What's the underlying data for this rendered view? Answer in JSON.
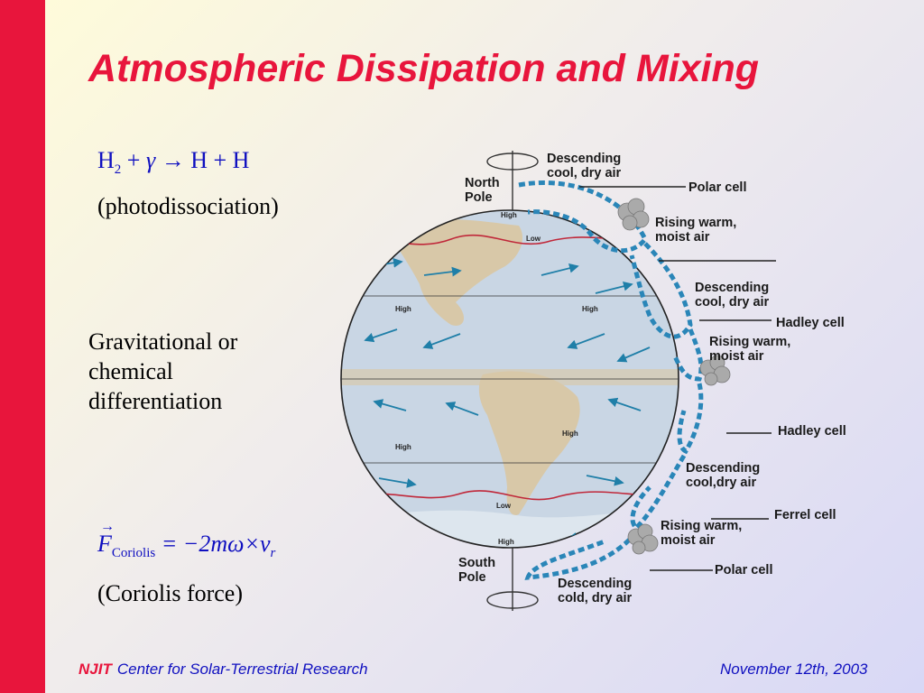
{
  "slide": {
    "title": "Atmospheric Dissipation and Mixing",
    "eq1": {
      "lhs_H": "H",
      "lhs_sub": "2",
      "plus1": "+",
      "gamma": "γ",
      "arrow": "→",
      "rhs": "H + H"
    },
    "eq1_caption": "(photodissociation)",
    "middle_text": [
      "Gravitational or",
      "chemical",
      "differentiation"
    ],
    "eq2": {
      "F": "F",
      "sub": "Coriolis",
      "rhs": "= −2mω×v",
      "r": "r"
    },
    "eq2_caption": "(Coriolis force)"
  },
  "diagram": {
    "pole_labels": {
      "north": [
        "North",
        "Pole"
      ],
      "south": [
        "South",
        "Pole"
      ]
    },
    "map_labels": [
      "High",
      "Low",
      "High",
      "High",
      "High",
      "High",
      "Low",
      "High"
    ],
    "cell_labels": [
      {
        "lines": [
          "Descending",
          "cool, dry air"
        ]
      },
      {
        "lines": [
          "Polar cell"
        ]
      },
      {
        "lines": [
          "Rising warm,",
          "moist air"
        ]
      },
      {
        "lines": [
          "Descending",
          "cool, dry air"
        ]
      },
      {
        "lines": [
          "Hadley cell"
        ]
      },
      {
        "lines": [
          "Rising warm,",
          "moist air"
        ]
      },
      {
        "lines": [
          "Hadley cell"
        ]
      },
      {
        "lines": [
          "Descending",
          "cool,dry air"
        ]
      },
      {
        "lines": [
          "Ferrel cell"
        ]
      },
      {
        "lines": [
          "Rising warm,",
          "moist air"
        ]
      },
      {
        "lines": [
          "Polar cell"
        ]
      },
      {
        "lines": [
          "Descending",
          "cold, dry air"
        ]
      }
    ],
    "colors": {
      "ocean": "#c9d6e4",
      "land": "#d8c8a8",
      "arrows": "#1f7fa8",
      "jet": "#c0283a"
    }
  },
  "footer": {
    "logo": "NJIT",
    "org": "Center for Solar-Terrestrial Research",
    "date": "November 12th, 2003"
  }
}
